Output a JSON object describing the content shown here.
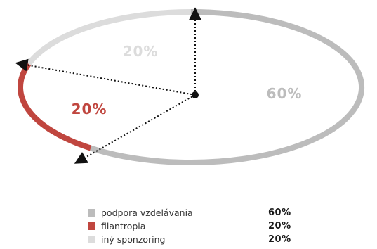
{
  "chart_data": {
    "type": "pie",
    "title": "",
    "slices": [
      {
        "label": "podpora vzdelávania",
        "value": 60,
        "display": "60%",
        "color": "#bcbcbc"
      },
      {
        "label": "filantropia",
        "value": 20,
        "display": "20%",
        "color": "#c0463f"
      },
      {
        "label": "iný sponzoring",
        "value": 20,
        "display": "20%",
        "color": "#dcdcdc"
      }
    ],
    "legend_position": "bottom"
  }
}
